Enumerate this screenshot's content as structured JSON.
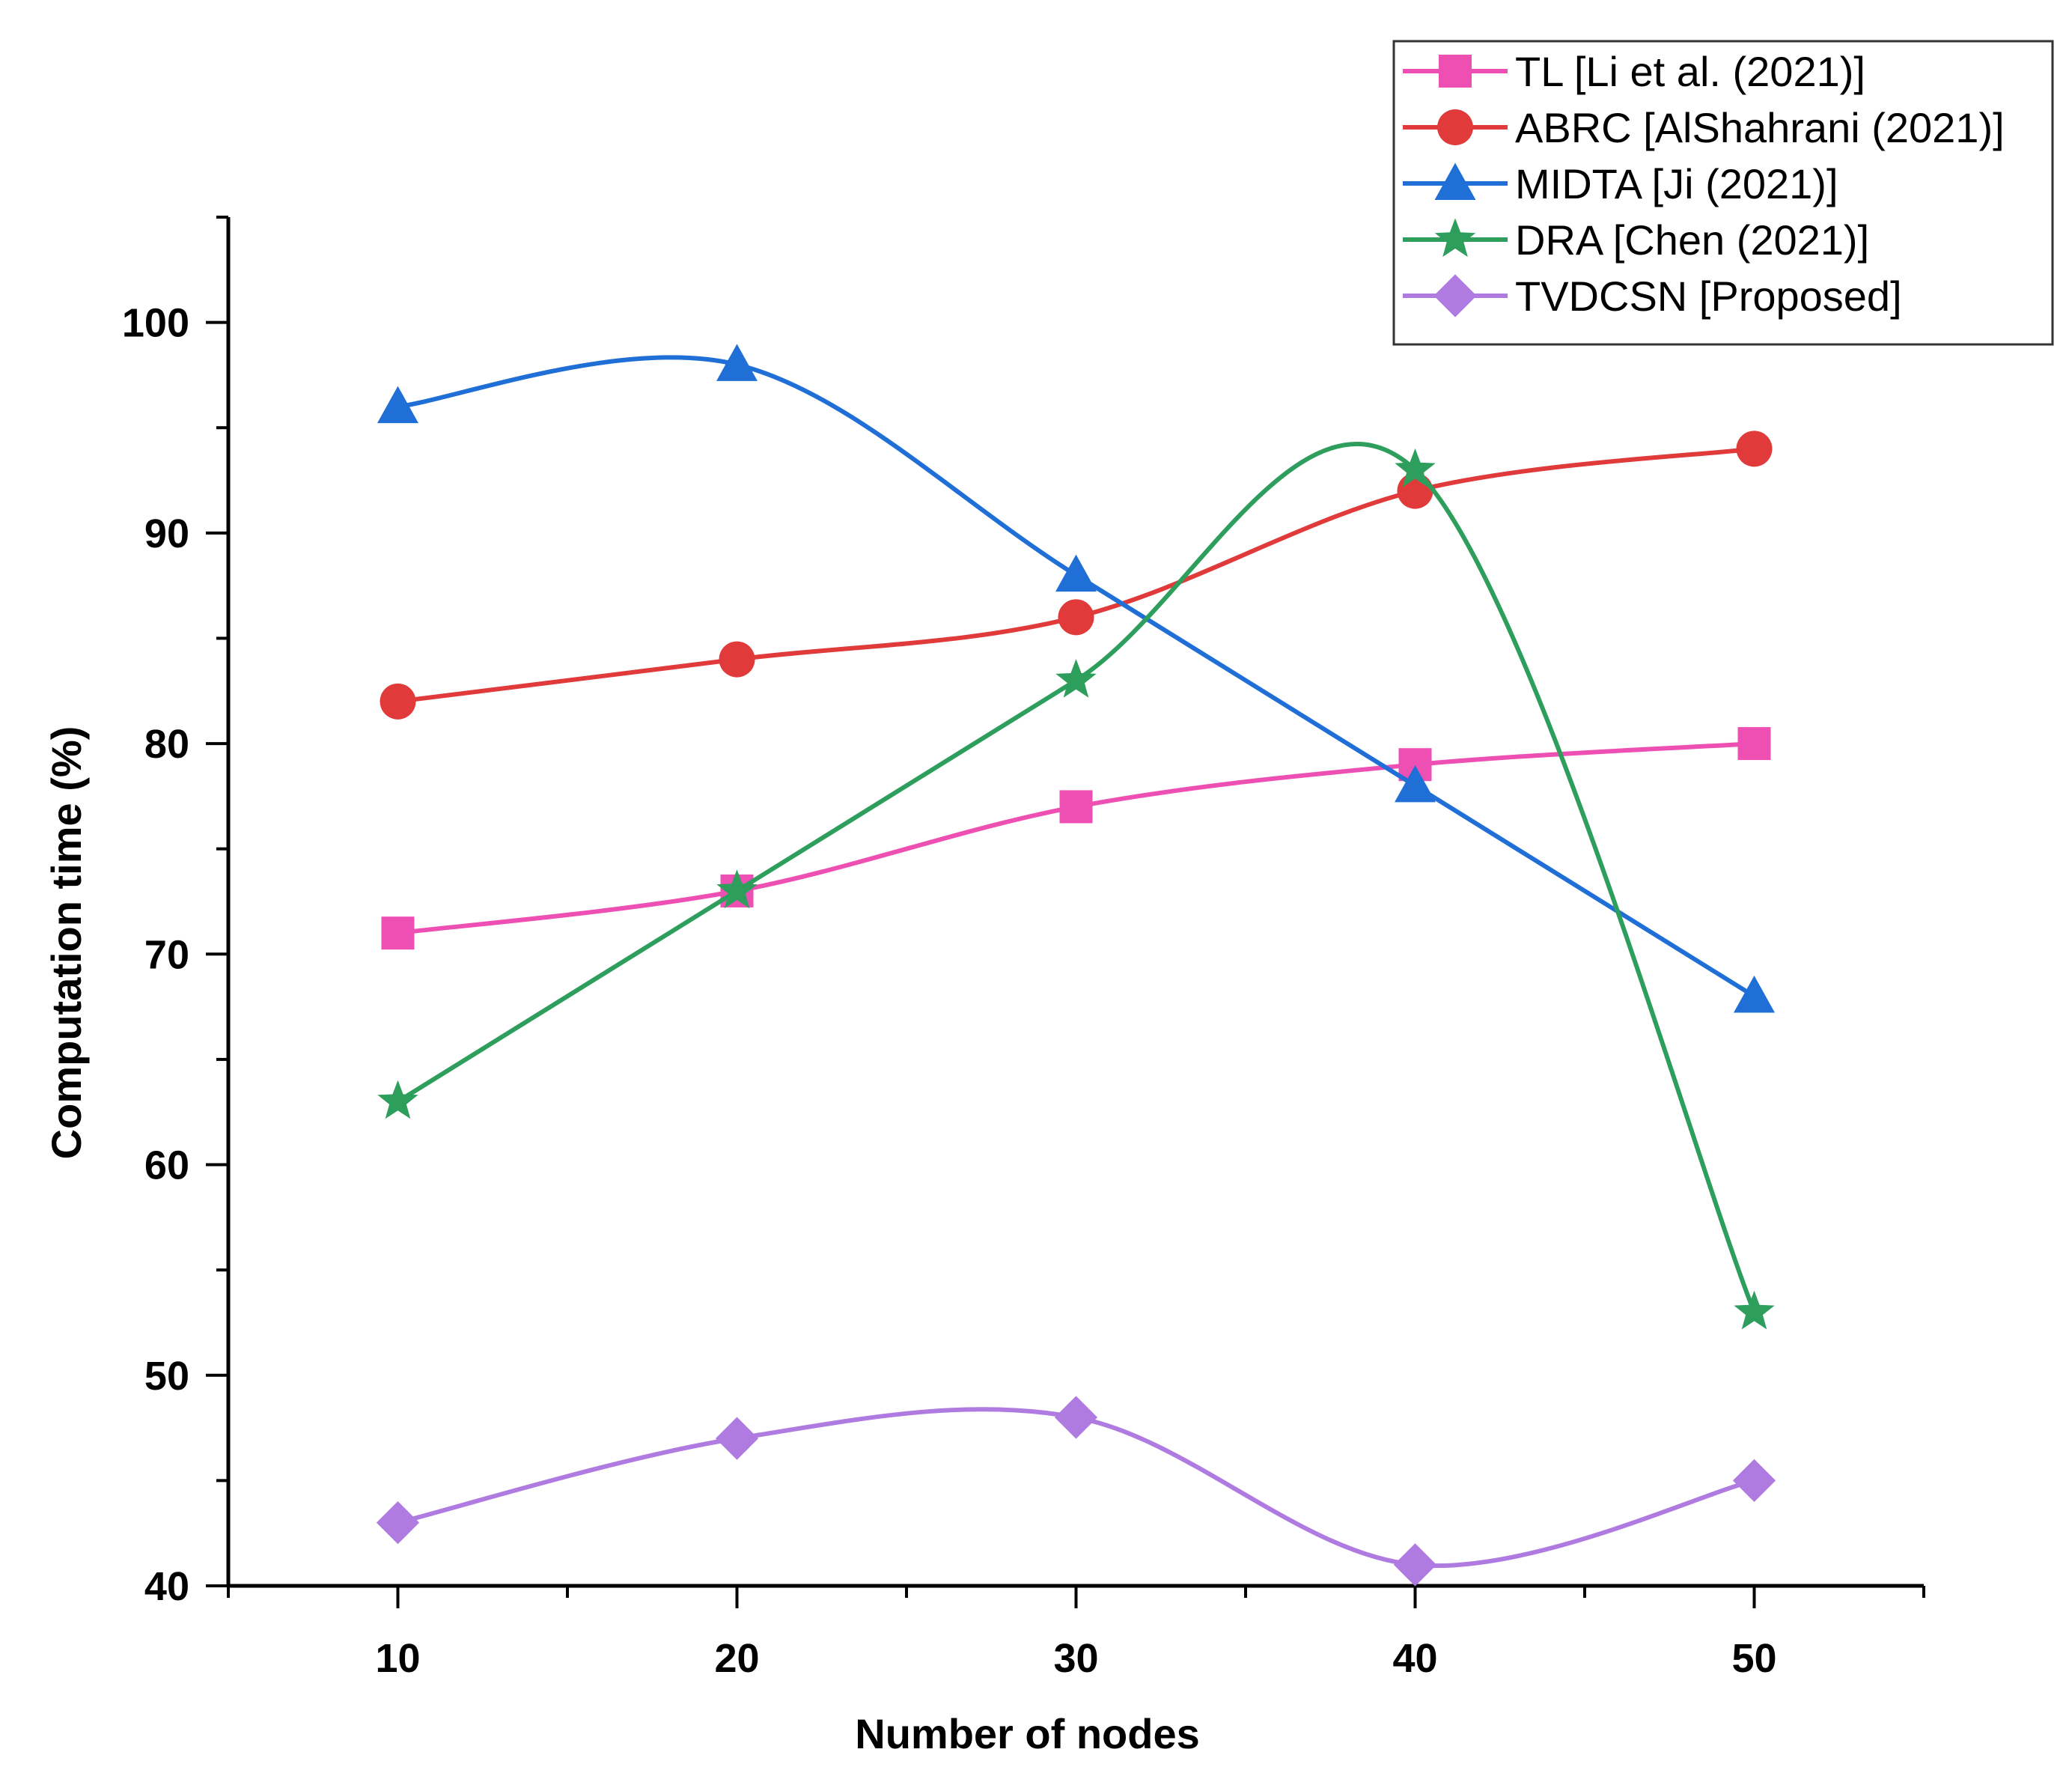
{
  "chart_data": {
    "type": "line",
    "title": "",
    "xlabel": "Number of nodes",
    "ylabel": "Computation time (%)",
    "x": [
      10,
      20,
      30,
      40,
      50
    ],
    "xlim": [
      5,
      55
    ],
    "ylim": [
      40,
      105
    ],
    "xticks": [
      10,
      20,
      30,
      40,
      50
    ],
    "yticks": [
      40,
      50,
      60,
      70,
      80,
      90,
      100
    ],
    "grid": false,
    "legend_position": "top-right",
    "series": [
      {
        "name": "TL [Li et al. (2021)]",
        "color": "#ee4fb3",
        "marker": "square",
        "values": [
          71,
          73,
          77,
          79,
          80
        ]
      },
      {
        "name": "ABRC [AlShahrani (2021)]",
        "color": "#e03a3a",
        "marker": "circle",
        "values": [
          82,
          84,
          86,
          92,
          94
        ]
      },
      {
        "name": "MIDTA [Ji (2021)]",
        "color": "#1f6fd6",
        "marker": "triangle",
        "values": [
          96,
          98,
          88,
          78,
          68
        ]
      },
      {
        "name": "DRA [Chen (2021)]",
        "color": "#2e9e5c",
        "marker": "star",
        "values": [
          63,
          73,
          83,
          93,
          53
        ]
      },
      {
        "name": "TVDCSN [Proposed]",
        "color": "#b07be0",
        "marker": "diamond",
        "values": [
          43,
          47,
          48,
          41,
          45
        ]
      }
    ]
  }
}
